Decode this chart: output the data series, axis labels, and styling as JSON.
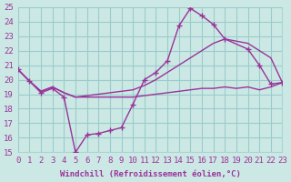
{
  "background_color": "#cce8e4",
  "grid_color": "#99cccc",
  "line_color": "#993399",
  "xlabel": "Windchill (Refroidissement éolien,°C)",
  "xlim": [
    0,
    23
  ],
  "ylim": [
    15,
    25
  ],
  "xticks": [
    0,
    1,
    2,
    3,
    4,
    5,
    6,
    7,
    8,
    9,
    10,
    11,
    12,
    13,
    14,
    15,
    16,
    17,
    18,
    19,
    20,
    21,
    22,
    23
  ],
  "yticks": [
    15,
    16,
    17,
    18,
    19,
    20,
    21,
    22,
    23,
    24,
    25
  ],
  "s1x": [
    0,
    1,
    2,
    3,
    4,
    5,
    6,
    7,
    8,
    9,
    10,
    11,
    12,
    13,
    14,
    15,
    16,
    17,
    18,
    20,
    21,
    22,
    23
  ],
  "s1y": [
    20.7,
    19.9,
    19.1,
    19.4,
    18.8,
    15.0,
    16.2,
    16.3,
    16.5,
    16.7,
    18.3,
    20.0,
    20.5,
    21.3,
    23.7,
    24.9,
    24.4,
    23.8,
    22.8,
    22.1,
    21.0,
    19.7,
    19.8
  ],
  "s2x": [
    0,
    1,
    2,
    3,
    4,
    5,
    10,
    11,
    12,
    13,
    14,
    15,
    16,
    17,
    18,
    20,
    21,
    22,
    23
  ],
  "s2y": [
    20.7,
    19.9,
    19.2,
    19.5,
    19.1,
    18.8,
    19.3,
    19.6,
    20.0,
    20.5,
    21.0,
    21.5,
    22.0,
    22.5,
    22.8,
    22.5,
    22.0,
    21.5,
    19.8
  ],
  "s3x": [
    0,
    1,
    2,
    3,
    4,
    5,
    10,
    11,
    12,
    13,
    14,
    15,
    16,
    17,
    18,
    19,
    20,
    21,
    22,
    23
  ],
  "s3y": [
    20.7,
    19.9,
    19.2,
    19.5,
    19.1,
    18.8,
    18.8,
    18.9,
    19.0,
    19.1,
    19.2,
    19.3,
    19.4,
    19.4,
    19.5,
    19.4,
    19.5,
    19.3,
    19.5,
    19.8
  ],
  "font_size": 6.5
}
